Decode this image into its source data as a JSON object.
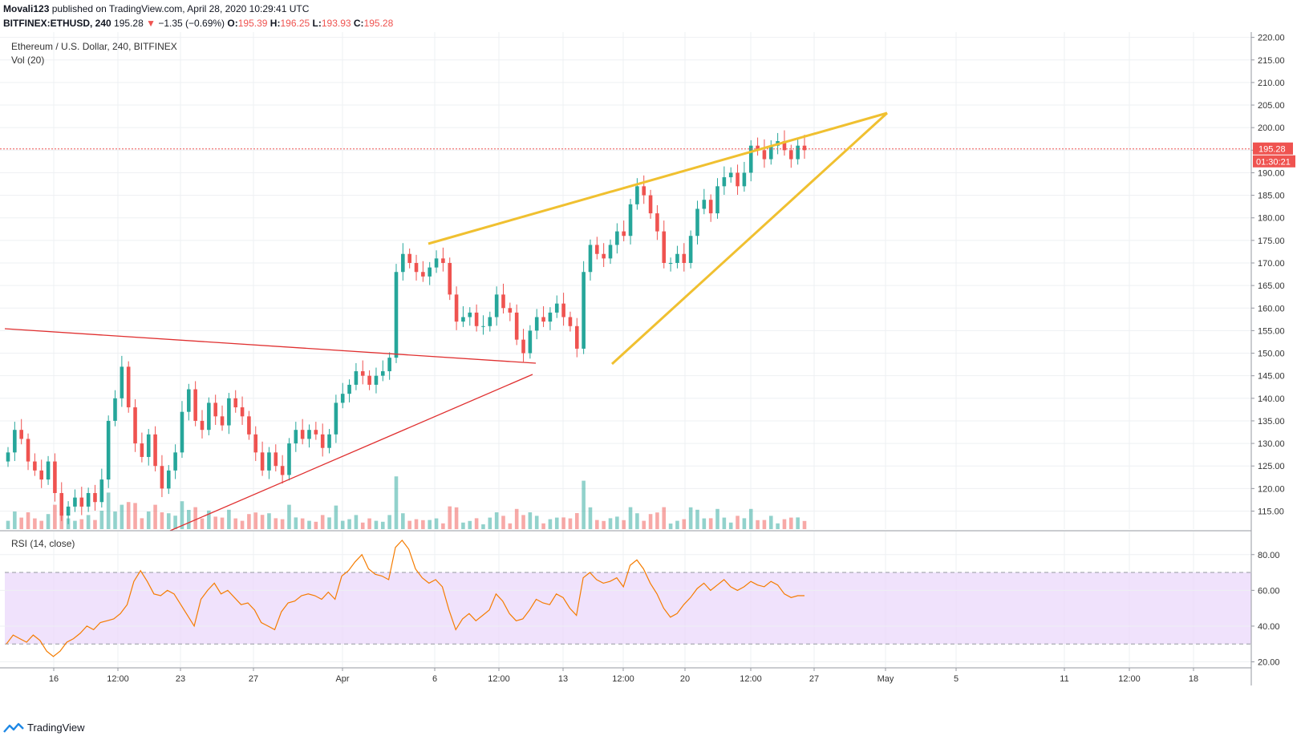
{
  "header": {
    "author": "Movali123",
    "published_text": "published on TradingView.com, April 28, 2020 10:29:41 UTC",
    "symbol": "BITFINEX:ETHUSD, 240",
    "last": "195.28",
    "change": "−1.35 (−0.69%)",
    "o_label": "O:",
    "o_value": "195.39",
    "h_label": "H:",
    "h_value": "196.25",
    "l_label": "L:",
    "l_value": "193.93",
    "c_label": "C:",
    "c_value": "195.28"
  },
  "pane": {
    "title": "Ethereum / U.S. Dollar, 240, BITFINEX",
    "vol_label": "Vol (20)",
    "rsi_label": "RSI (14, close)"
  },
  "price_badge": "195.28",
  "countdown_badge": "01:30:21",
  "footer": {
    "brand": "TradingView",
    "brand_icon": "tradingview-logo-icon"
  },
  "colors": {
    "up": "#26a69a",
    "down": "#ef5350",
    "wedge": "#f0c030",
    "triangle": "#e03030",
    "rsi": "#f57c00",
    "rsi_band": "#e9d5fb"
  },
  "chart_data": {
    "type": "candlestick",
    "price_axis": {
      "ticks": [
        "220.00",
        "215.00",
        "210.00",
        "205.00",
        "200.00",
        "195.00",
        "190.00",
        "185.00",
        "180.00",
        "175.00",
        "170.00",
        "165.00",
        "160.00",
        "155.00",
        "150.00",
        "145.00",
        "140.00",
        "135.00",
        "130.00",
        "125.00",
        "120.00",
        "115.00"
      ],
      "ylim": [
        111,
        221
      ]
    },
    "rsi_axis": {
      "ticks": [
        "80.00",
        "60.00",
        "40.00",
        "20.00"
      ],
      "ylim": [
        18,
        92
      ],
      "upper_band": 70,
      "lower_band": 30
    },
    "x_ticks": [
      "16",
      "12:00",
      "23",
      "27",
      "Apr",
      "6",
      "12:00",
      "13",
      "12:00",
      "20",
      "12:00",
      "27",
      "May",
      "5",
      "11",
      "12:00",
      "18"
    ],
    "last_price": 195.28,
    "closes": [
      128,
      133,
      131,
      126,
      124,
      122,
      126,
      119,
      114,
      116,
      118,
      116,
      119,
      117,
      122,
      135,
      140,
      147,
      138,
      130,
      127,
      132,
      125,
      120,
      124,
      128,
      137,
      142,
      135,
      133,
      139,
      136,
      134,
      140,
      138,
      136,
      132,
      128,
      124,
      128,
      125,
      123,
      130,
      133,
      131,
      133,
      132,
      129,
      132,
      139,
      141,
      143,
      146,
      145,
      143,
      145,
      146,
      149,
      168,
      172,
      170,
      168,
      167,
      169,
      171,
      170,
      163,
      157,
      158,
      159,
      156,
      156,
      158,
      163,
      160,
      159,
      153,
      150,
      155,
      158,
      157,
      159,
      161,
      158,
      156,
      151,
      168,
      174,
      172,
      171,
      174,
      177,
      176,
      183,
      187,
      185,
      181,
      177,
      170,
      170,
      172,
      170,
      176,
      182,
      184,
      181,
      187,
      189,
      190,
      187,
      190,
      196,
      195,
      193,
      196,
      197,
      195,
      193,
      196,
      195
    ],
    "rsi": [
      30,
      35,
      33,
      31,
      35,
      32,
      26,
      23,
      26,
      31,
      33,
      36,
      40,
      38,
      42,
      43,
      44,
      47,
      52,
      65,
      71,
      65,
      58,
      57,
      60,
      58,
      52,
      46,
      40,
      55,
      60,
      64,
      58,
      60,
      56,
      52,
      53,
      49,
      42,
      40,
      38,
      48,
      53,
      54,
      57,
      58,
      57,
      55,
      59,
      55,
      68,
      71,
      76,
      80,
      72,
      69,
      68,
      66,
      84,
      88,
      83,
      72,
      67,
      64,
      66,
      62,
      49,
      38,
      44,
      47,
      43,
      46,
      49,
      58,
      54,
      47,
      43,
      44,
      49,
      55,
      53,
      52,
      58,
      56,
      50,
      46,
      67,
      70,
      66,
      64,
      65,
      67,
      62,
      74,
      77,
      72,
      64,
      58,
      50,
      45,
      47,
      52,
      56,
      61,
      64,
      60,
      63,
      66,
      62,
      60,
      62,
      65,
      63,
      62,
      65,
      63,
      58,
      56,
      57,
      57
    ]
  }
}
